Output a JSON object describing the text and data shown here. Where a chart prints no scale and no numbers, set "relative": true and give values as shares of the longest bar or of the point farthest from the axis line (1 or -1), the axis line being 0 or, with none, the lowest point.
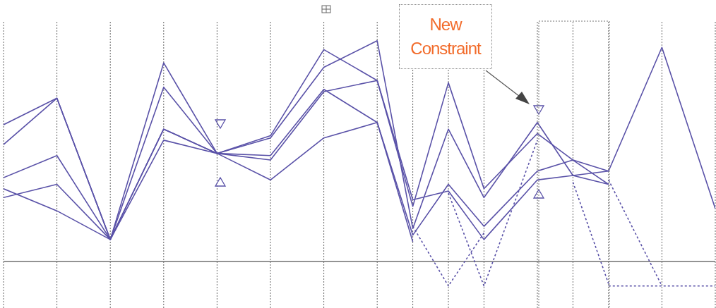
{
  "chart_data": {
    "type": "line",
    "relative": true,
    "grid": "x",
    "marker": "none",
    "annotations": [
      "New Constraint"
    ],
    "categories": [
      null,
      null,
      null,
      null,
      null,
      null,
      null,
      null,
      null,
      null,
      null,
      null,
      null,
      null,
      null,
      null,
      null,
      null,
      null,
      null,
      null,
      null,
      null,
      null,
      null,
      null,
      null,
      null,
      null,
      null,
      null,
      null,
      null,
      null,
      null,
      null,
      null,
      null,
      null,
      null,
      null
    ],
    "series": [
      {
        "color": "#5a52a8",
        "line_style": "solid",
        "values": [
          0.62,
          null,
          null,
          0.74,
          null,
          null,
          0.1,
          null,
          null,
          0.9,
          null,
          null,
          0.49,
          null,
          null,
          0.57,
          null,
          null,
          0.96,
          null,
          null,
          0.82,
          null,
          0.25,
          null,
          0.81,
          null,
          0.33,
          null,
          null,
          0.58,
          null,
          0.46,
          null,
          0.41,
          null,
          null,
          0.97,
          null,
          null,
          0.24
        ]
      },
      {
        "color": "#5a52a8",
        "line_style": "solid",
        "values": [
          0.53,
          null,
          null,
          0.74,
          null,
          null,
          0.1,
          null,
          null,
          0.79,
          null,
          null,
          0.49,
          null,
          null,
          0.56,
          null,
          null,
          0.88,
          null,
          null,
          1.0,
          null,
          0.15,
          null,
          0.6,
          null,
          0.29,
          null,
          null,
          0.63,
          null,
          0.39,
          null,
          0.35,
          null,
          null,
          null,
          null,
          null,
          null
        ]
      },
      {
        "color": "#5a52a8",
        "line_style": "solid",
        "values": [
          0.38,
          null,
          null,
          0.48,
          null,
          null,
          0.1,
          null,
          null,
          0.6,
          null,
          null,
          0.49,
          null,
          null,
          0.48,
          null,
          null,
          0.78,
          null,
          null,
          0.63,
          null,
          0.12,
          null,
          0.35,
          null,
          0.16,
          null,
          null,
          0.41,
          null,
          0.46,
          null,
          0.35,
          null,
          null,
          null,
          null,
          null,
          null
        ]
      },
      {
        "color": "#5a52a8",
        "line_style": "solid",
        "values": [
          0.33,
          null,
          null,
          0.23,
          null,
          null,
          0.1,
          null,
          null,
          0.6,
          null,
          null,
          0.49,
          null,
          null,
          0.46,
          null,
          null,
          0.77,
          null,
          null,
          0.82,
          null,
          0.28,
          null,
          0.32,
          null,
          0.1,
          null,
          null,
          0.37,
          null,
          0.39,
          null,
          0.41,
          null,
          null,
          null,
          null,
          null,
          null
        ]
      },
      {
        "color": "#5a52a8",
        "line_style": "solid",
        "values": [
          0.29,
          null,
          null,
          0.35,
          null,
          null,
          0.1,
          null,
          null,
          0.55,
          null,
          null,
          0.49,
          null,
          null,
          0.37,
          null,
          null,
          0.56,
          null,
          null,
          0.63,
          null,
          0.09,
          null,
          null,
          null,
          null,
          null,
          null,
          null,
          null,
          null,
          null,
          null,
          null,
          null,
          null,
          null,
          null,
          null
        ]
      },
      {
        "color": "#5a52a8",
        "line_style": "dashed",
        "values": [
          null,
          null,
          null,
          null,
          null,
          null,
          null,
          null,
          null,
          null,
          null,
          null,
          null,
          null,
          null,
          null,
          null,
          null,
          null,
          null,
          null,
          null,
          null,
          0.16,
          null,
          -0.11,
          null,
          0.13,
          null,
          null,
          null,
          null,
          null,
          null,
          null,
          null,
          null,
          null,
          null,
          null,
          null
        ]
      },
      {
        "color": "#5a52a8",
        "line_style": "dashed",
        "values": [
          null,
          null,
          null,
          null,
          null,
          null,
          null,
          null,
          null,
          null,
          null,
          null,
          null,
          null,
          null,
          null,
          null,
          null,
          null,
          null,
          null,
          null,
          null,
          null,
          null,
          0.31,
          null,
          -0.11,
          null,
          null,
          0.55,
          null,
          null,
          null,
          null,
          null,
          null,
          null,
          null,
          null,
          null
        ]
      },
      {
        "color": "#5a52a8",
        "line_style": "dashed",
        "values": [
          null,
          null,
          null,
          null,
          null,
          null,
          null,
          null,
          null,
          null,
          null,
          null,
          null,
          null,
          null,
          null,
          null,
          null,
          null,
          null,
          null,
          null,
          null,
          null,
          null,
          null,
          null,
          null,
          null,
          null,
          null,
          null,
          0.36,
          null,
          -0.1,
          null,
          null,
          null,
          null,
          null,
          null
        ]
      },
      {
        "color": "#5a52a8",
        "line_style": "dashed",
        "values": [
          null,
          null,
          null,
          null,
          null,
          null,
          null,
          null,
          null,
          null,
          null,
          null,
          null,
          null,
          null,
          null,
          null,
          null,
          null,
          null,
          null,
          null,
          null,
          null,
          null,
          null,
          null,
          null,
          null,
          null,
          null,
          null,
          null,
          null,
          0.37,
          null,
          null,
          -0.11,
          null,
          null,
          null
        ]
      },
      {
        "color": "#5a52a8",
        "line_style": "dashed",
        "values": [
          null,
          null,
          null,
          null,
          null,
          null,
          null,
          null,
          null,
          null,
          null,
          null,
          null,
          null,
          null,
          null,
          null,
          null,
          null,
          null,
          null,
          null,
          null,
          null,
          null,
          null,
          null,
          null,
          null,
          null,
          null,
          null,
          null,
          null,
          -0.11,
          null,
          null,
          -0.11,
          null,
          null,
          -0.11
        ]
      }
    ]
  }
}
